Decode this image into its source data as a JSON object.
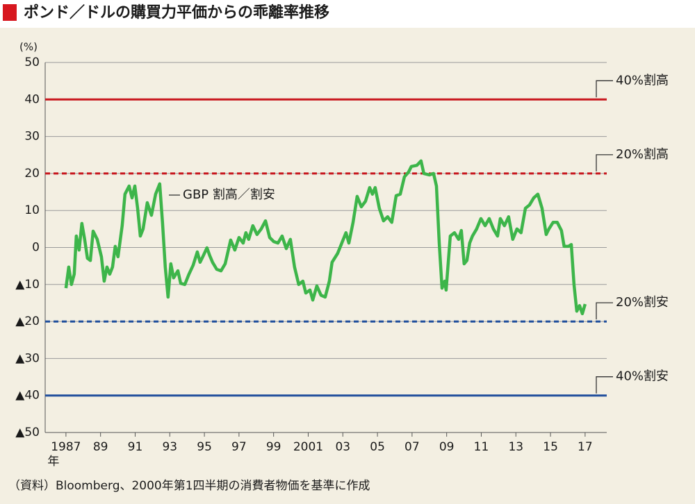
{
  "chart_data": {
    "type": "line",
    "title": "ポンド／ドルの購買力平価からの乖離率推移",
    "y_unit": "(%)",
    "x_unit": "年",
    "source": "（資料）Bloomberg、2000年第1四半期の消費者物価を基準に作成",
    "annotation": "GBP 割高／割安",
    "xlim": [
      1985.8,
      2018.25
    ],
    "ylim": [
      -50,
      50
    ],
    "xticks": [
      {
        "value": 1987,
        "label": "1987"
      },
      {
        "value": 1989,
        "label": "89"
      },
      {
        "value": 1991,
        "label": "91"
      },
      {
        "value": 1993,
        "label": "93"
      },
      {
        "value": 1995,
        "label": "95"
      },
      {
        "value": 1997,
        "label": "97"
      },
      {
        "value": 1999,
        "label": "99"
      },
      2001,
      {
        "value": 2003,
        "label": "03"
      },
      {
        "value": 2005,
        "label": "05"
      },
      {
        "value": 2007,
        "label": "07"
      },
      {
        "value": 2009,
        "label": "09"
      },
      {
        "value": 2011,
        "label": "11"
      },
      {
        "value": 2013,
        "label": "13"
      },
      {
        "value": 2015,
        "label": "15"
      },
      {
        "value": 2017,
        "label": "17"
      }
    ],
    "yticks": [
      50,
      40,
      30,
      20,
      10,
      0,
      {
        "value": -10,
        "label": "▲10"
      },
      {
        "value": -20,
        "label": "▲20"
      },
      {
        "value": -30,
        "label": "▲30"
      },
      {
        "value": -40,
        "label": "▲40"
      },
      {
        "value": -50,
        "label": "▲50"
      }
    ],
    "grid": true,
    "reference_lines": [
      {
        "value": 40,
        "label": "40%割高",
        "color": "#c8161d",
        "style": "solid"
      },
      {
        "value": 20,
        "label": "20%割高",
        "color": "#c8161d",
        "style": "dashed"
      },
      {
        "value": -20,
        "label": "20%割安",
        "color": "#1f4e9c",
        "style": "dashed"
      },
      {
        "value": -40,
        "label": "40%割安",
        "color": "#1f4e9c",
        "style": "solid"
      }
    ],
    "x": [
      1987.0,
      1987.16,
      1987.32,
      1987.48,
      1987.6,
      1987.76,
      1987.92,
      1988.08,
      1988.24,
      1988.41,
      1988.57,
      1988.81,
      1989.05,
      1989.21,
      1989.37,
      1989.53,
      1989.69,
      1989.85,
      1990.01,
      1990.25,
      1990.41,
      1990.65,
      1990.82,
      1990.98,
      1991.14,
      1991.3,
      1991.46,
      1991.7,
      1991.94,
      1992.18,
      1992.42,
      1992.58,
      1992.74,
      1992.9,
      1993.06,
      1993.22,
      1993.47,
      1993.63,
      1993.87,
      1994.11,
      1994.35,
      1994.59,
      1994.75,
      1994.91,
      1995.15,
      1995.31,
      1995.47,
      1995.71,
      1995.96,
      1996.2,
      1996.52,
      1996.76,
      1997.0,
      1997.24,
      1997.4,
      1997.56,
      1997.8,
      1998.04,
      1998.28,
      1998.53,
      1998.77,
      1999.01,
      1999.25,
      1999.49,
      1999.73,
      1999.97,
      2000.21,
      2000.45,
      2000.69,
      2000.86,
      2001.1,
      2001.26,
      2001.5,
      2001.74,
      2001.98,
      2002.22,
      2002.38,
      2002.7,
      2002.94,
      2003.18,
      2003.35,
      2003.59,
      2003.83,
      2004.07,
      2004.31,
      2004.55,
      2004.71,
      2004.87,
      2005.11,
      2005.35,
      2005.59,
      2005.83,
      2006.08,
      2006.32,
      2006.56,
      2006.8,
      2006.96,
      2007.28,
      2007.52,
      2007.68,
      2008.0,
      2008.24,
      2008.41,
      2008.57,
      2008.73,
      2008.89,
      2008.97,
      2009.21,
      2009.45,
      2009.69,
      2009.85,
      2010.01,
      2010.17,
      2010.33,
      2010.49,
      2010.73,
      2010.98,
      2011.22,
      2011.46,
      2011.7,
      2011.94,
      2012.1,
      2012.34,
      2012.58,
      2012.82,
      2013.06,
      2013.3,
      2013.55,
      2013.79,
      2014.03,
      2014.27,
      2014.51,
      2014.75,
      2014.91,
      2015.15,
      2015.39,
      2015.63,
      2015.79,
      2016.04,
      2016.2,
      2016.36,
      2016.52,
      2016.68,
      2016.84,
      2017.0
    ],
    "series": [
      {
        "color": "#3db54a",
        "values": [
          -11.0,
          -5.3,
          -10.0,
          -7.2,
          3.1,
          -0.7,
          6.5,
          2.2,
          -2.9,
          -3.5,
          4.4,
          2.2,
          -2.5,
          -9.1,
          -5.3,
          -7.2,
          -5.3,
          0.3,
          -2.5,
          5.9,
          14.4,
          16.6,
          13.4,
          16.6,
          10.6,
          3.1,
          5.0,
          12.1,
          8.7,
          14.4,
          17.2,
          6.8,
          -5.3,
          -13.4,
          -4.4,
          -8.2,
          -6.3,
          -9.7,
          -10.0,
          -7.2,
          -4.8,
          -1.2,
          -4.0,
          -2.5,
          -0.1,
          -2.2,
          -4.0,
          -5.9,
          -6.3,
          -4.4,
          2.0,
          -0.7,
          2.7,
          1.2,
          4.0,
          2.2,
          5.9,
          3.5,
          5.0,
          7.2,
          2.7,
          1.6,
          1.2,
          3.1,
          -0.3,
          2.2,
          -5.3,
          -10.0,
          -9.1,
          -12.3,
          -11.5,
          -14.2,
          -10.4,
          -12.9,
          -13.4,
          -9.1,
          -4.0,
          -1.6,
          1.2,
          4.0,
          1.2,
          6.8,
          13.8,
          11.0,
          12.5,
          16.2,
          14.4,
          16.2,
          10.6,
          7.2,
          8.3,
          6.8,
          14.0,
          14.4,
          19.1,
          20.4,
          21.9,
          22.2,
          23.4,
          20.0,
          19.6,
          20.0,
          16.6,
          1.2,
          -11.0,
          -9.1,
          -11.5,
          3.1,
          4.0,
          2.2,
          4.6,
          -4.4,
          -3.5,
          1.2,
          3.1,
          5.0,
          7.8,
          5.9,
          7.8,
          5.0,
          3.1,
          7.8,
          5.9,
          8.3,
          2.2,
          5.0,
          4.0,
          10.6,
          11.5,
          13.4,
          14.4,
          10.6,
          3.5,
          5.0,
          6.8,
          6.8,
          4.6,
          0.3,
          0.3,
          0.8,
          -10.0,
          -17.2,
          -15.7,
          -17.9,
          -15.3
        ]
      }
    ]
  }
}
